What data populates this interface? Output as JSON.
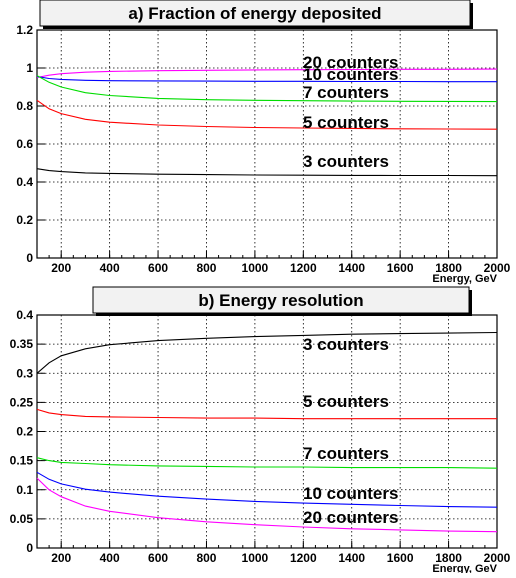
{
  "chart_data": [
    {
      "type": "line",
      "title": "a) Fraction of energy deposited",
      "xlabel": "Energy, GeV",
      "ylabel": "",
      "xlim": [
        100,
        2000
      ],
      "ylim": [
        0,
        1.2
      ],
      "grid": true,
      "x_ticks": [
        "200",
        "400",
        "600",
        "800",
        "1000",
        "1200",
        "1400",
        "1600",
        "1800",
        "2000"
      ],
      "y_ticks": [
        "0",
        "0.2",
        "0.4",
        "0.6",
        "0.8",
        "1",
        "1.2"
      ],
      "x": [
        100,
        150,
        200,
        300,
        400,
        600,
        800,
        1000,
        1200,
        1400,
        1600,
        1800,
        2000
      ],
      "series": [
        {
          "name": "20 counters",
          "color": "#ff00ff",
          "values": [
            0.95,
            0.962,
            0.97,
            0.978,
            0.982,
            0.986,
            0.988,
            0.99,
            0.991,
            0.992,
            0.993,
            0.993,
            0.994
          ]
        },
        {
          "name": "10 counters",
          "color": "#0000ff",
          "values": [
            0.955,
            0.945,
            0.94,
            0.935,
            0.933,
            0.932,
            0.931,
            0.93,
            0.93,
            0.929,
            0.929,
            0.928,
            0.928
          ]
        },
        {
          "name": "7 counters",
          "color": "#00dd00",
          "values": [
            0.96,
            0.925,
            0.9,
            0.87,
            0.855,
            0.84,
            0.833,
            0.83,
            0.828,
            0.826,
            0.825,
            0.824,
            0.823
          ]
        },
        {
          "name": "5 counters",
          "color": "#ff0000",
          "values": [
            0.83,
            0.785,
            0.76,
            0.73,
            0.715,
            0.7,
            0.692,
            0.687,
            0.684,
            0.682,
            0.68,
            0.679,
            0.678
          ]
        },
        {
          "name": "3 counters",
          "color": "#000000",
          "values": [
            0.47,
            0.46,
            0.455,
            0.448,
            0.445,
            0.441,
            0.439,
            0.437,
            0.436,
            0.435,
            0.434,
            0.434,
            0.433
          ]
        }
      ]
    },
    {
      "type": "line",
      "title": "b) Energy resolution",
      "xlabel": "Energy, GeV",
      "ylabel": "",
      "xlim": [
        100,
        2000
      ],
      "ylim": [
        0,
        0.4
      ],
      "grid": true,
      "x_ticks": [
        "200",
        "400",
        "600",
        "800",
        "1000",
        "1200",
        "1400",
        "1600",
        "1800",
        "2000"
      ],
      "y_ticks": [
        "0",
        "0.05",
        "0.1",
        "0.15",
        "0.2",
        "0.25",
        "0.3",
        "0.35",
        "0.4"
      ],
      "x": [
        100,
        150,
        200,
        300,
        400,
        600,
        800,
        1000,
        1200,
        1400,
        1600,
        1800,
        2000
      ],
      "series": [
        {
          "name": "3 counters",
          "color": "#000000",
          "values": [
            0.3,
            0.318,
            0.33,
            0.342,
            0.349,
            0.356,
            0.36,
            0.363,
            0.365,
            0.367,
            0.368,
            0.369,
            0.37
          ]
        },
        {
          "name": "5 counters",
          "color": "#ff0000",
          "values": [
            0.238,
            0.232,
            0.229,
            0.226,
            0.225,
            0.224,
            0.223,
            0.223,
            0.222,
            0.222,
            0.222,
            0.222,
            0.222
          ]
        },
        {
          "name": "7 counters",
          "color": "#00dd00",
          "values": [
            0.155,
            0.15,
            0.147,
            0.145,
            0.143,
            0.141,
            0.14,
            0.139,
            0.139,
            0.138,
            0.138,
            0.138,
            0.137
          ]
        },
        {
          "name": "10 counters",
          "color": "#0000ff",
          "values": [
            0.13,
            0.118,
            0.11,
            0.101,
            0.096,
            0.089,
            0.084,
            0.08,
            0.077,
            0.075,
            0.073,
            0.071,
            0.07
          ]
        },
        {
          "name": "20 counters",
          "color": "#ff00ff",
          "values": [
            0.12,
            0.1,
            0.088,
            0.072,
            0.063,
            0.052,
            0.045,
            0.04,
            0.036,
            0.033,
            0.031,
            0.029,
            0.028
          ]
        }
      ]
    }
  ]
}
